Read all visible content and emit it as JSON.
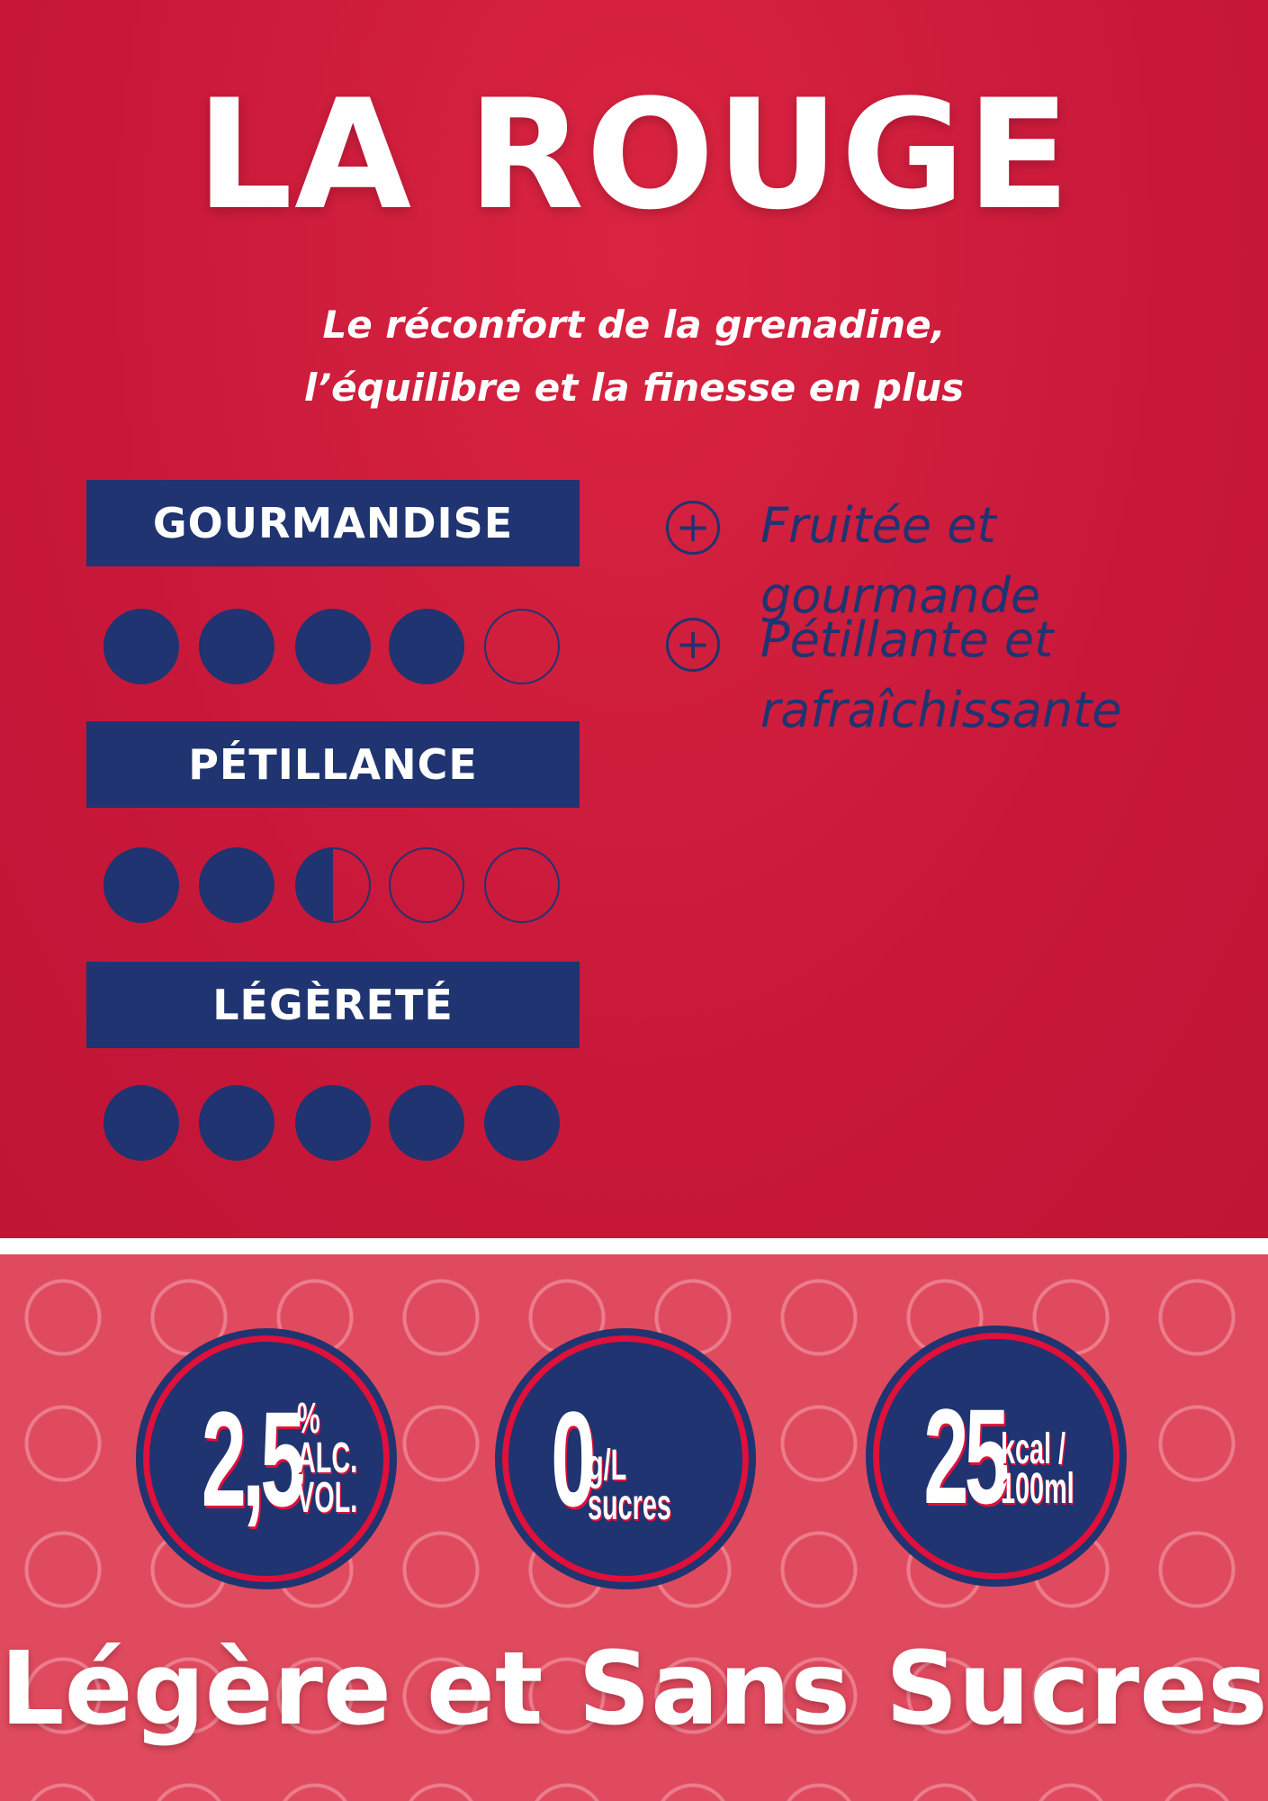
{
  "title": "LA ROUGE",
  "subtitle": [
    "Le réconfort de la grenadine,",
    "l’équilibre et la finesse en plus"
  ],
  "ratings": [
    {
      "label": "GOURMANDISE",
      "value": 4,
      "max": 5
    },
    {
      "label": "PÉTILLANCE",
      "value": 2.5,
      "max": 5
    },
    {
      "label": "LÉGÈRETÉ",
      "value": 5,
      "max": 5
    }
  ],
  "features": [
    {
      "icon": "plus-circle-icon",
      "text": "Fruitée et gourmande"
    },
    {
      "icon": "plus-circle-icon",
      "text": "Pétillante et rafraîchissante"
    }
  ],
  "badges": [
    {
      "value": "2,5",
      "unit": [
        "%",
        "ALC.",
        "VOL."
      ]
    },
    {
      "value": "0",
      "unit": [
        "g/L",
        "sucres"
      ]
    },
    {
      "value": "25",
      "unit": [
        "kcal /",
        "100ml"
      ]
    }
  ],
  "slogan": "Légère et Sans Sucres",
  "colors": {
    "red": "#c8193a",
    "navy": "#1f3470",
    "pink": "#e04a5e"
  }
}
